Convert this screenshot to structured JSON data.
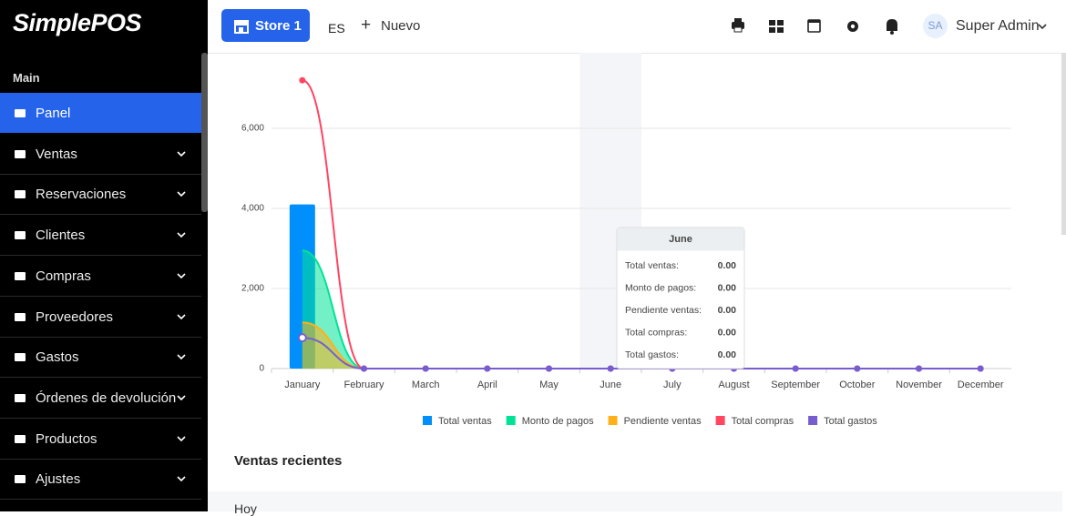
{
  "sidebar": {
    "logo": "SimplePOS",
    "section": "Main",
    "items": [
      "Panel",
      "Ventas",
      "Reservaciones",
      "Clientes",
      "Compras",
      "Proveedores",
      "Gastos",
      "Órdenes de devolución",
      "Productos",
      "Ajustes"
    ]
  },
  "topbar": {
    "store": "Store 1",
    "language": "ES",
    "new": "Nuevo",
    "user_initials": "SA",
    "user": "Super Admin"
  },
  "chart_data": {
    "type": "combo",
    "categories": [
      "January",
      "February",
      "March",
      "April",
      "May",
      "June",
      "July",
      "August",
      "September",
      "October",
      "November",
      "December"
    ],
    "series": [
      {
        "name": "Total ventas",
        "type": "bar",
        "color": "#008FFB",
        "values": [
          4100,
          0,
          0,
          0,
          0,
          0,
          0,
          0,
          0,
          0,
          0,
          0
        ]
      },
      {
        "name": "Monto de pagos",
        "type": "area",
        "color": "#00E396",
        "values": [
          2950,
          0,
          0,
          0,
          0,
          0,
          0,
          0,
          0,
          0,
          0,
          0
        ]
      },
      {
        "name": "Pendiente ventas",
        "type": "area",
        "color": "#FEB019",
        "values": [
          1150,
          0,
          0,
          0,
          0,
          0,
          0,
          0,
          0,
          0,
          0,
          0
        ]
      },
      {
        "name": "Total compras",
        "type": "line",
        "color": "#FF4560",
        "values": [
          7200,
          0,
          0,
          0,
          0,
          0,
          0,
          0,
          0,
          0,
          0,
          0
        ]
      },
      {
        "name": "Total gastos",
        "type": "line",
        "color": "#775DD0",
        "values": [
          770,
          0,
          0,
          0,
          0,
          0,
          0,
          0,
          0,
          0,
          0,
          0
        ]
      }
    ],
    "ylim": [
      0,
      8000
    ],
    "yticks": [
      0,
      {
        "value": 2000,
        "label": "2,000"
      },
      {
        "value": 4000,
        "label": "4,000"
      },
      {
        "value": 6000,
        "label": "6,000"
      }
    ],
    "grid": true,
    "legend": "bottom",
    "tooltip": {
      "title": "June",
      "labels": [
        "Total ventas:",
        "Monto de pagos:",
        "Pendiente ventas:",
        "Total compras:",
        "Total gastos:"
      ],
      "value_labels": [
        "0.00",
        "0.00",
        "0.00",
        "0.00",
        "0.00"
      ]
    }
  },
  "recent": {
    "title": "Ventas recientes",
    "group": "Hoy"
  }
}
